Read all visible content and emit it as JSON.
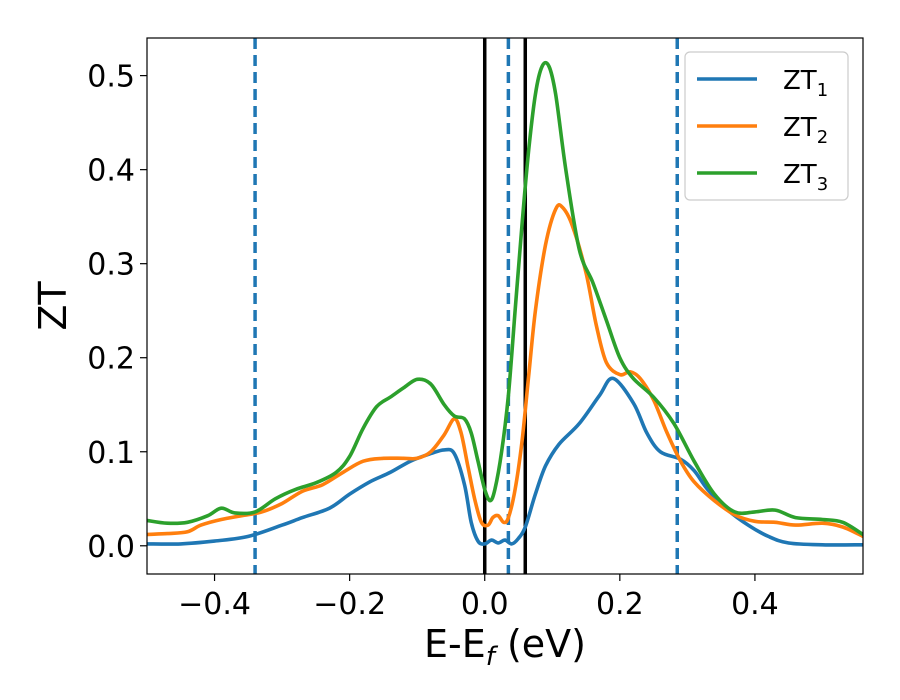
{
  "chart_data": {
    "type": "line",
    "xlabel": "E-E",
    "xlabel_sub": "f",
    "xlabel_unit": " (eV)",
    "ylabel": "ZT",
    "xlim": [
      -0.5,
      0.56
    ],
    "ylim": [
      -0.03,
      0.54
    ],
    "xticks": [
      -0.4,
      -0.2,
      0.0,
      0.2,
      0.4
    ],
    "xtick_labels": [
      "−0.4",
      "−0.2",
      "0.0",
      "0.2",
      "0.4"
    ],
    "yticks": [
      0.0,
      0.1,
      0.2,
      0.3,
      0.4,
      0.5
    ],
    "ytick_labels": [
      "0.0",
      "0.1",
      "0.2",
      "0.3",
      "0.4",
      "0.5"
    ],
    "grid": false,
    "legend_position": "top-right",
    "vertical_lines": [
      {
        "x": -0.34,
        "style": "dashed",
        "color": "#1f77b4"
      },
      {
        "x": 0.035,
        "style": "dashed",
        "color": "#1f77b4"
      },
      {
        "x": 0.285,
        "style": "dashed",
        "color": "#1f77b4"
      },
      {
        "x": 0.0,
        "style": "solid",
        "color": "#000000"
      },
      {
        "x": 0.06,
        "style": "solid",
        "color": "#000000"
      }
    ],
    "series": [
      {
        "name": "ZT",
        "sub": "1",
        "color": "#1f77b4",
        "points": [
          [
            -0.5,
            0.002
          ],
          [
            -0.45,
            0.002
          ],
          [
            -0.4,
            0.005
          ],
          [
            -0.35,
            0.01
          ],
          [
            -0.3,
            0.022
          ],
          [
            -0.27,
            0.03
          ],
          [
            -0.23,
            0.04
          ],
          [
            -0.2,
            0.055
          ],
          [
            -0.17,
            0.068
          ],
          [
            -0.14,
            0.078
          ],
          [
            -0.11,
            0.09
          ],
          [
            -0.08,
            0.098
          ],
          [
            -0.06,
            0.102
          ],
          [
            -0.045,
            0.098
          ],
          [
            -0.03,
            0.065
          ],
          [
            -0.02,
            0.025
          ],
          [
            -0.01,
            0.005
          ],
          [
            0.0,
            0.002
          ],
          [
            0.01,
            0.006
          ],
          [
            0.02,
            0.003
          ],
          [
            0.03,
            0.006
          ],
          [
            0.04,
            0.002
          ],
          [
            0.05,
            0.008
          ],
          [
            0.06,
            0.02
          ],
          [
            0.075,
            0.055
          ],
          [
            0.09,
            0.085
          ],
          [
            0.11,
            0.108
          ],
          [
            0.14,
            0.13
          ],
          [
            0.17,
            0.16
          ],
          [
            0.19,
            0.178
          ],
          [
            0.22,
            0.152
          ],
          [
            0.24,
            0.12
          ],
          [
            0.26,
            0.1
          ],
          [
            0.29,
            0.092
          ],
          [
            0.31,
            0.08
          ],
          [
            0.33,
            0.06
          ],
          [
            0.36,
            0.038
          ],
          [
            0.39,
            0.022
          ],
          [
            0.42,
            0.01
          ],
          [
            0.45,
            0.003
          ],
          [
            0.5,
            0.001
          ],
          [
            0.56,
            0.001
          ]
        ]
      },
      {
        "name": "ZT",
        "sub": "2",
        "color": "#ff7f0e",
        "points": [
          [
            -0.5,
            0.012
          ],
          [
            -0.47,
            0.013
          ],
          [
            -0.44,
            0.015
          ],
          [
            -0.42,
            0.022
          ],
          [
            -0.39,
            0.028
          ],
          [
            -0.36,
            0.032
          ],
          [
            -0.33,
            0.036
          ],
          [
            -0.3,
            0.045
          ],
          [
            -0.27,
            0.058
          ],
          [
            -0.24,
            0.065
          ],
          [
            -0.21,
            0.078
          ],
          [
            -0.18,
            0.09
          ],
          [
            -0.15,
            0.093
          ],
          [
            -0.12,
            0.093
          ],
          [
            -0.1,
            0.093
          ],
          [
            -0.08,
            0.1
          ],
          [
            -0.06,
            0.118
          ],
          [
            -0.045,
            0.135
          ],
          [
            -0.035,
            0.12
          ],
          [
            -0.025,
            0.085
          ],
          [
            -0.015,
            0.05
          ],
          [
            -0.005,
            0.025
          ],
          [
            0.005,
            0.022
          ],
          [
            0.012,
            0.03
          ],
          [
            0.02,
            0.032
          ],
          [
            0.028,
            0.025
          ],
          [
            0.035,
            0.03
          ],
          [
            0.045,
            0.06
          ],
          [
            0.055,
            0.11
          ],
          [
            0.065,
            0.18
          ],
          [
            0.075,
            0.25
          ],
          [
            0.09,
            0.32
          ],
          [
            0.105,
            0.358
          ],
          [
            0.115,
            0.36
          ],
          [
            0.13,
            0.34
          ],
          [
            0.15,
            0.29
          ],
          [
            0.165,
            0.235
          ],
          [
            0.18,
            0.195
          ],
          [
            0.2,
            0.182
          ],
          [
            0.215,
            0.185
          ],
          [
            0.23,
            0.178
          ],
          [
            0.25,
            0.155
          ],
          [
            0.27,
            0.12
          ],
          [
            0.29,
            0.09
          ],
          [
            0.31,
            0.068
          ],
          [
            0.34,
            0.048
          ],
          [
            0.37,
            0.033
          ],
          [
            0.4,
            0.026
          ],
          [
            0.43,
            0.025
          ],
          [
            0.46,
            0.022
          ],
          [
            0.5,
            0.024
          ],
          [
            0.53,
            0.02
          ],
          [
            0.56,
            0.01
          ]
        ]
      },
      {
        "name": "ZT",
        "sub": "3",
        "color": "#2ca02c",
        "points": [
          [
            -0.5,
            0.027
          ],
          [
            -0.47,
            0.024
          ],
          [
            -0.44,
            0.025
          ],
          [
            -0.41,
            0.032
          ],
          [
            -0.39,
            0.04
          ],
          [
            -0.37,
            0.035
          ],
          [
            -0.34,
            0.036
          ],
          [
            -0.31,
            0.05
          ],
          [
            -0.28,
            0.06
          ],
          [
            -0.25,
            0.067
          ],
          [
            -0.22,
            0.078
          ],
          [
            -0.2,
            0.095
          ],
          [
            -0.18,
            0.125
          ],
          [
            -0.16,
            0.148
          ],
          [
            -0.14,
            0.158
          ],
          [
            -0.12,
            0.168
          ],
          [
            -0.1,
            0.177
          ],
          [
            -0.08,
            0.172
          ],
          [
            -0.06,
            0.15
          ],
          [
            -0.045,
            0.138
          ],
          [
            -0.03,
            0.135
          ],
          [
            -0.02,
            0.12
          ],
          [
            -0.01,
            0.09
          ],
          [
            0.0,
            0.06
          ],
          [
            0.008,
            0.048
          ],
          [
            0.015,
            0.06
          ],
          [
            0.025,
            0.1
          ],
          [
            0.035,
            0.16
          ],
          [
            0.045,
            0.25
          ],
          [
            0.055,
            0.34
          ],
          [
            0.065,
            0.42
          ],
          [
            0.075,
            0.48
          ],
          [
            0.085,
            0.51
          ],
          [
            0.095,
            0.51
          ],
          [
            0.105,
            0.48
          ],
          [
            0.12,
            0.4
          ],
          [
            0.14,
            0.315
          ],
          [
            0.16,
            0.28
          ],
          [
            0.18,
            0.24
          ],
          [
            0.2,
            0.2
          ],
          [
            0.22,
            0.178
          ],
          [
            0.25,
            0.158
          ],
          [
            0.28,
            0.13
          ],
          [
            0.31,
            0.09
          ],
          [
            0.34,
            0.055
          ],
          [
            0.37,
            0.036
          ],
          [
            0.4,
            0.036
          ],
          [
            0.43,
            0.038
          ],
          [
            0.46,
            0.03
          ],
          [
            0.5,
            0.028
          ],
          [
            0.53,
            0.025
          ],
          [
            0.56,
            0.012
          ]
        ]
      }
    ]
  }
}
